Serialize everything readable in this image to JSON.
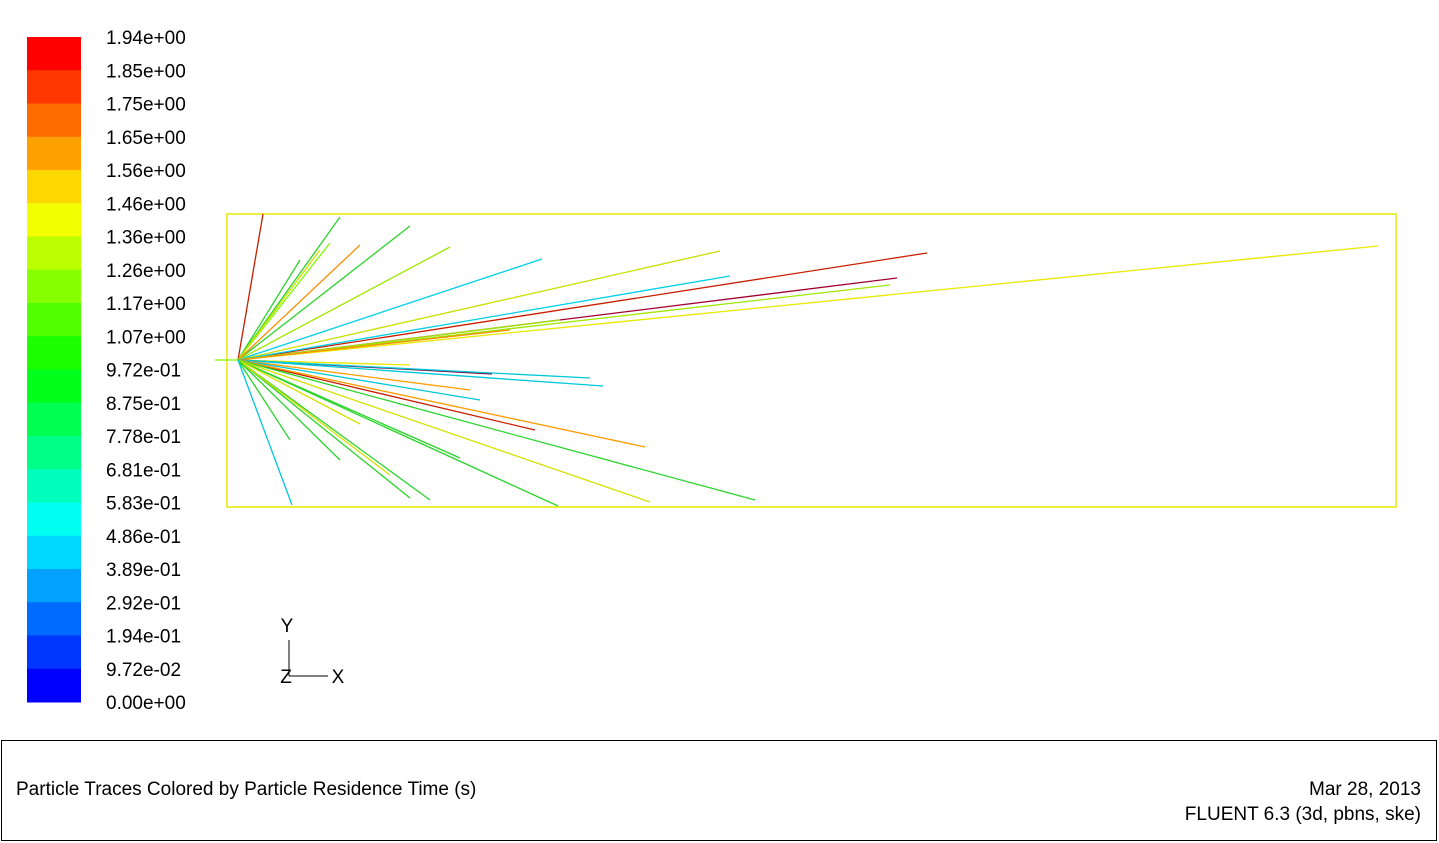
{
  "colorbar": {
    "labels": [
      "1.94e+00",
      "1.85e+00",
      "1.75e+00",
      "1.65e+00",
      "1.56e+00",
      "1.46e+00",
      "1.36e+00",
      "1.26e+00",
      "1.17e+00",
      "1.07e+00",
      "9.72e-01",
      "8.75e-01",
      "7.78e-01",
      "6.81e-01",
      "5.83e-01",
      "4.86e-01",
      "3.89e-01",
      "2.92e-01",
      "1.94e-01",
      "9.72e-02",
      "0.00e+00"
    ]
  },
  "axes": {
    "y": "Y",
    "z": "Z",
    "x": "X"
  },
  "footer": {
    "title": "Particle Traces Colored by Particle Residence Time (s)",
    "date": "Mar 28, 2013",
    "version": "FLUENT 6.3 (3d, pbns, ske)"
  }
}
